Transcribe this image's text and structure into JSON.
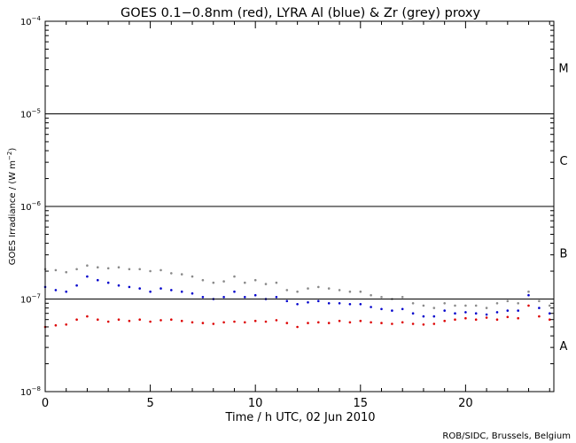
{
  "chart_data": {
    "type": "scatter",
    "title": "GOES 0.1−0.8nm (red), LYRA Al (blue) & Zr (grey) proxy",
    "xlabel": "Time / h UTC, 02 Jun 2010",
    "ylabel_main": "GOES Irradiance / (W m",
    "ylabel_sup": "−2",
    "ylabel_end": ")",
    "credit": "ROB/SIDC, Brussels, Belgium",
    "xlim": [
      0,
      24.2
    ],
    "ylim_log10": [
      -8,
      -4
    ],
    "y_scale": "log",
    "x_ticks": [
      {
        "value": 0,
        "label": "0"
      },
      {
        "value": 5,
        "label": "5"
      },
      {
        "value": 10,
        "label": "10"
      },
      {
        "value": 15,
        "label": "15"
      },
      {
        "value": 20,
        "label": "20"
      }
    ],
    "y_ticks": [
      {
        "exp": -8,
        "base": "10",
        "sup": "−8"
      },
      {
        "exp": -7,
        "base": "10",
        "sup": "−7"
      },
      {
        "exp": -6,
        "base": "10",
        "sup": "−6"
      },
      {
        "exp": -5,
        "base": "10",
        "sup": "−5"
      },
      {
        "exp": -4,
        "base": "10",
        "sup": "−4"
      }
    ],
    "flare_class_lines": [
      -7,
      -6,
      -5
    ],
    "flare_classes": [
      {
        "label": "A",
        "exp": -7.5
      },
      {
        "label": "B",
        "exp": -6.5
      },
      {
        "label": "C",
        "exp": -5.5
      },
      {
        "label": "M",
        "exp": -4.5
      }
    ],
    "colors": {
      "goes": "#dd0000",
      "lyra_al": "#0000cc",
      "lyra_zr": "#8a8a8a"
    },
    "series": [
      {
        "name": "LYRA Zr (grey)",
        "color": "#8a8a8a",
        "x": [
          0,
          0.5,
          1,
          1.5,
          2,
          2.5,
          3,
          3.5,
          4,
          4.5,
          5,
          5.5,
          6,
          6.5,
          7,
          7.5,
          8,
          8.5,
          9,
          9.5,
          10,
          10.5,
          11,
          11.5,
          12,
          12.5,
          13,
          13.5,
          14,
          14.5,
          15,
          15.5,
          16,
          16.5,
          17,
          17.5,
          18,
          18.5,
          19,
          19.5,
          20,
          20.5,
          21,
          21.5,
          22,
          22.5,
          23,
          23.5,
          24
        ],
        "y": [
          2.1e-07,
          2.05e-07,
          1.95e-07,
          2.1e-07,
          2.3e-07,
          2.2e-07,
          2.15e-07,
          2.2e-07,
          2.1e-07,
          2.1e-07,
          2e-07,
          2.05e-07,
          1.9e-07,
          1.85e-07,
          1.75e-07,
          1.6e-07,
          1.5e-07,
          1.55e-07,
          1.75e-07,
          1.5e-07,
          1.6e-07,
          1.45e-07,
          1.5e-07,
          1.25e-07,
          1.2e-07,
          1.3e-07,
          1.35e-07,
          1.3e-07,
          1.25e-07,
          1.2e-07,
          1.2e-07,
          1.1e-07,
          1.05e-07,
          1e-07,
          1.05e-07,
          9e-08,
          8.5e-08,
          8e-08,
          9e-08,
          8.5e-08,
          8.5e-08,
          8.5e-08,
          8e-08,
          9e-08,
          9.5e-08,
          9e-08,
          1.2e-07,
          9.5e-08,
          8.5e-08
        ]
      },
      {
        "name": "LYRA Al (blue)",
        "color": "#0000cc",
        "x": [
          0,
          0.5,
          1,
          1.5,
          2,
          2.5,
          3,
          3.5,
          4,
          4.5,
          5,
          5.5,
          6,
          6.5,
          7,
          7.5,
          8,
          8.5,
          9,
          9.5,
          10,
          10.5,
          11,
          11.5,
          12,
          12.5,
          13,
          13.5,
          14,
          14.5,
          15,
          15.5,
          16,
          16.5,
          17,
          17.5,
          18,
          18.5,
          19,
          19.5,
          20,
          20.5,
          21,
          21.5,
          22,
          22.5,
          23,
          23.5,
          24
        ],
        "y": [
          1.35e-07,
          1.25e-07,
          1.2e-07,
          1.4e-07,
          1.75e-07,
          1.6e-07,
          1.5e-07,
          1.4e-07,
          1.35e-07,
          1.3e-07,
          1.2e-07,
          1.3e-07,
          1.25e-07,
          1.2e-07,
          1.15e-07,
          1.05e-07,
          1e-07,
          1.05e-07,
          1.2e-07,
          1.05e-07,
          1.1e-07,
          1e-07,
          1.05e-07,
          9.5e-08,
          8.8e-08,
          9.2e-08,
          9.5e-08,
          9e-08,
          9e-08,
          8.8e-08,
          8.8e-08,
          8.2e-08,
          7.8e-08,
          7.5e-08,
          7.8e-08,
          7e-08,
          6.5e-08,
          6.5e-08,
          7.5e-08,
          7e-08,
          7.2e-08,
          7e-08,
          6.8e-08,
          7.2e-08,
          7.5e-08,
          7.5e-08,
          1.1e-07,
          8e-08,
          7e-08
        ]
      },
      {
        "name": "GOES 0.1−0.8nm (red)",
        "color": "#dd0000",
        "x": [
          0,
          0.5,
          1,
          1.5,
          2,
          2.5,
          3,
          3.5,
          4,
          4.5,
          5,
          5.5,
          6,
          6.5,
          7,
          7.5,
          8,
          8.5,
          9,
          9.5,
          10,
          10.5,
          11,
          11.5,
          12,
          12.5,
          13,
          13.5,
          14,
          14.5,
          15,
          15.5,
          16,
          16.5,
          17,
          17.5,
          18,
          18.5,
          19,
          19.5,
          20,
          20.5,
          21,
          21.5,
          22,
          22.5,
          23,
          23.5,
          24
        ],
        "y": [
          5e-08,
          5.2e-08,
          5.3e-08,
          6e-08,
          6.5e-08,
          6e-08,
          5.7e-08,
          6e-08,
          5.8e-08,
          6e-08,
          5.7e-08,
          5.9e-08,
          6e-08,
          5.8e-08,
          5.6e-08,
          5.5e-08,
          5.4e-08,
          5.6e-08,
          5.7e-08,
          5.6e-08,
          5.8e-08,
          5.7e-08,
          5.9e-08,
          5.5e-08,
          5e-08,
          5.5e-08,
          5.6e-08,
          5.5e-08,
          5.8e-08,
          5.6e-08,
          5.8e-08,
          5.6e-08,
          5.5e-08,
          5.4e-08,
          5.6e-08,
          5.4e-08,
          5.3e-08,
          5.4e-08,
          5.8e-08,
          6e-08,
          6.2e-08,
          6e-08,
          6.3e-08,
          6e-08,
          6.4e-08,
          6.2e-08,
          8.5e-08,
          6.5e-08,
          6e-08
        ]
      }
    ]
  }
}
